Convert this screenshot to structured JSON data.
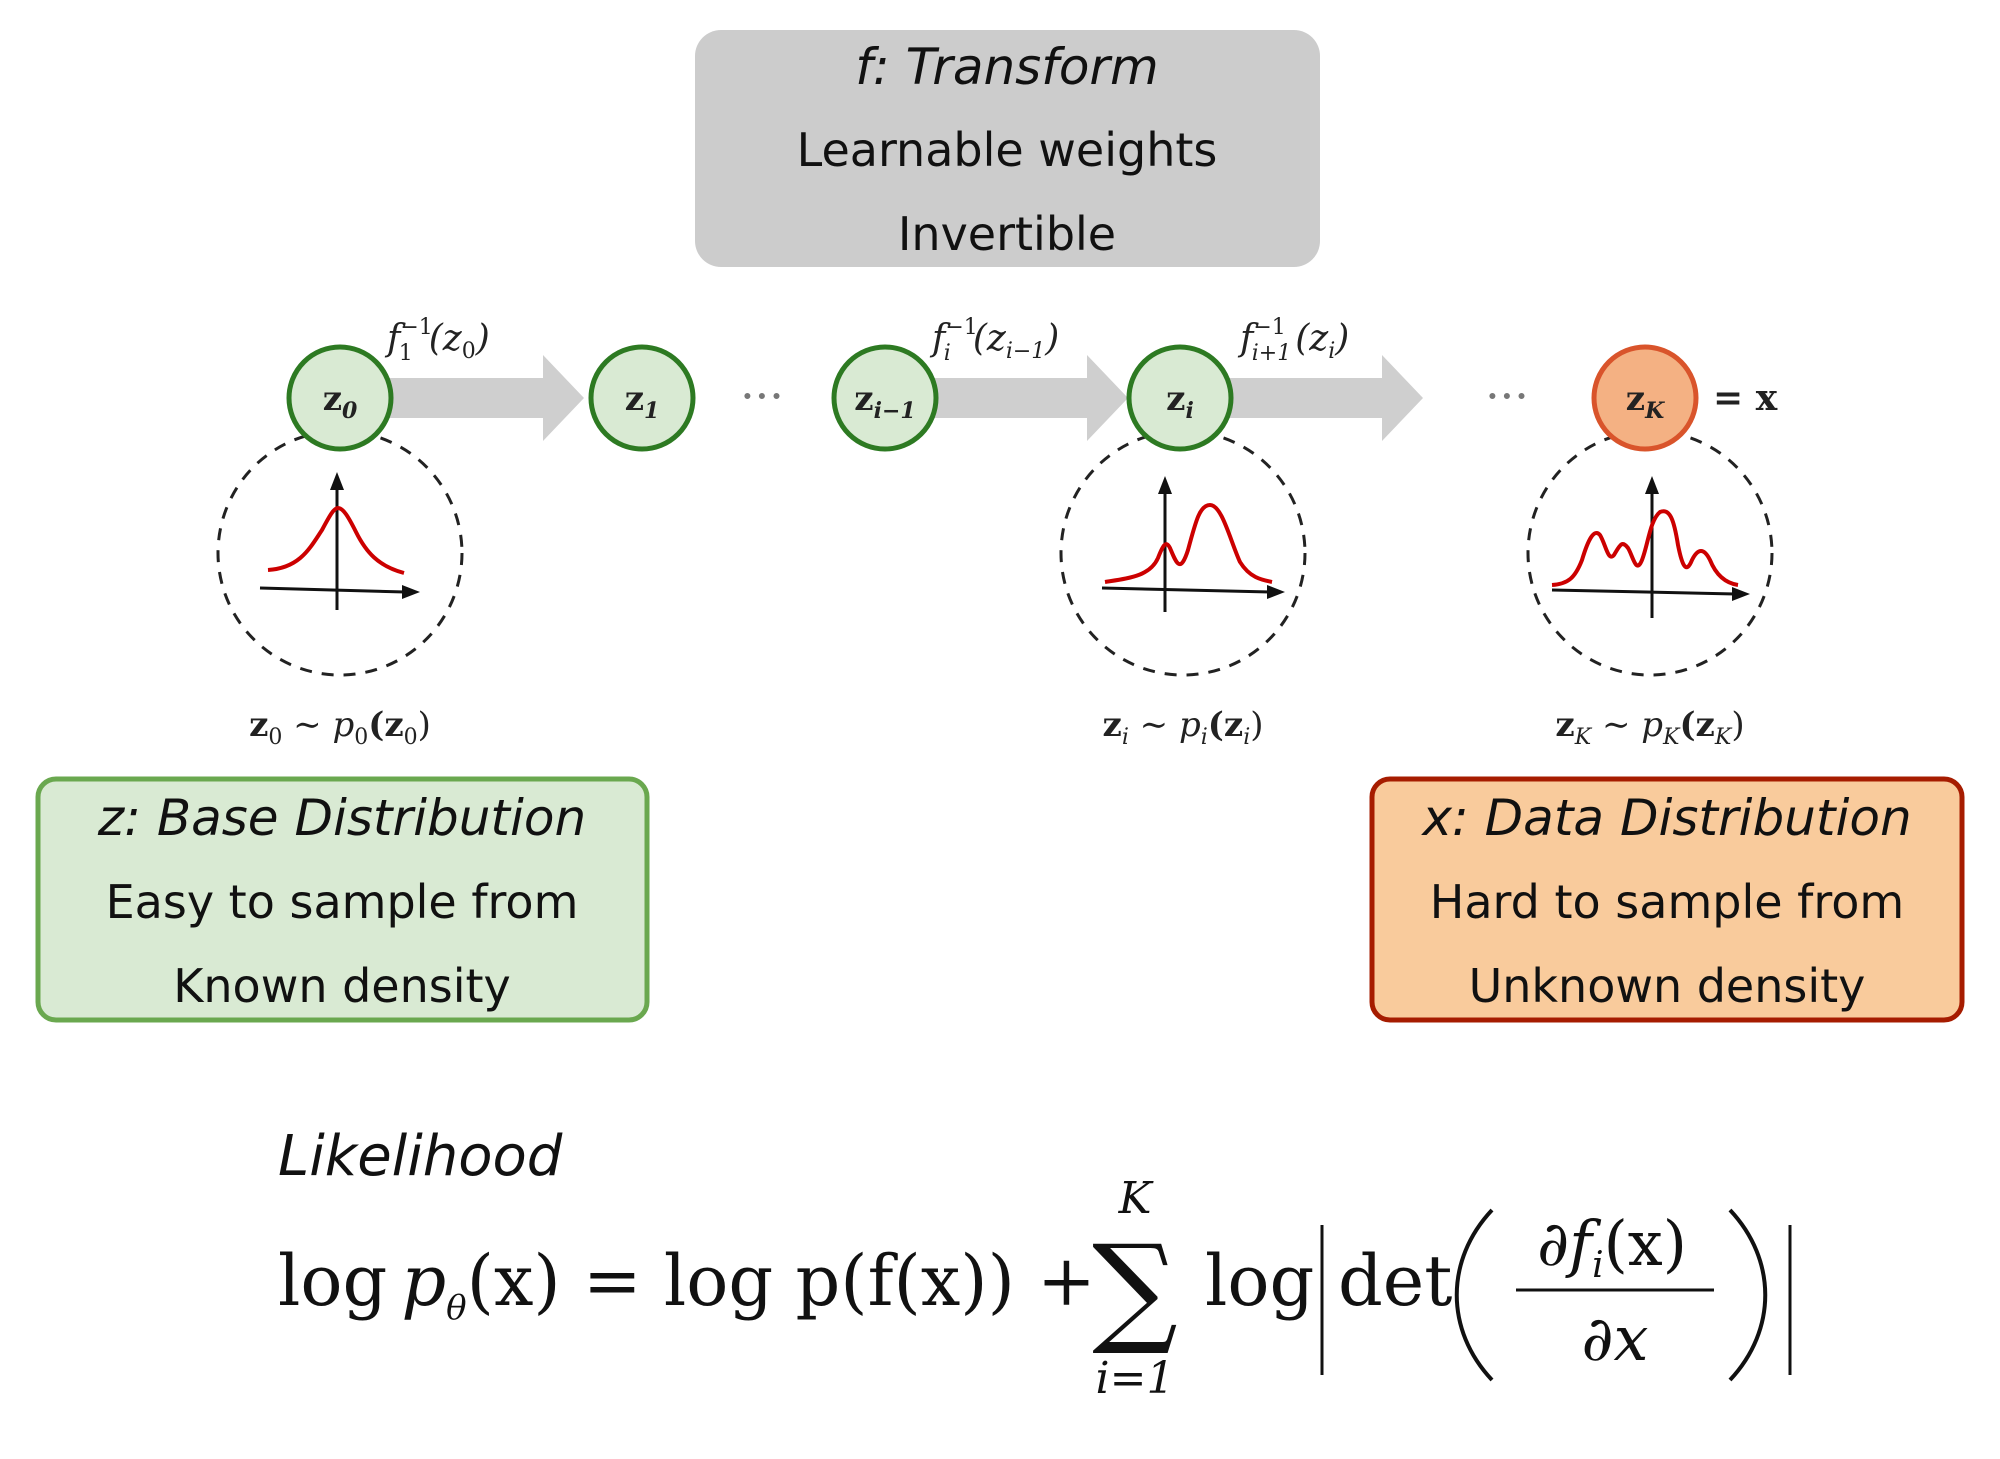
{
  "transform_box": {
    "title": "f: Transform",
    "line1": "Learnable weights",
    "line2": "Invertible"
  },
  "nodes": [
    {
      "base": "z",
      "sub": "0"
    },
    {
      "base": "z",
      "sub": "1"
    },
    {
      "base": "z",
      "sub": "i−1"
    },
    {
      "base": "z",
      "sub": "i"
    },
    {
      "base": "z",
      "sub": "K"
    }
  ],
  "equals_x": "= x",
  "ellipsis": "···",
  "edges": [
    {
      "f": "f",
      "sup": "−1",
      "sub": "1",
      "arg": "(z",
      "argsub": "0",
      "close": ")"
    },
    {
      "f": "f",
      "sup": "−1",
      "sub": "i",
      "arg": "(z",
      "argsub": "i−1",
      "close": ")"
    },
    {
      "f": "f",
      "sup": "−1",
      "sub": "i+1",
      "arg": "(z",
      "argsub": "i",
      "close": ")"
    }
  ],
  "distributions": [
    {
      "z": "z",
      "zsub": "0",
      "sim": " ∼ p",
      "psub": "0",
      "open": "(z",
      "argsub": "0",
      "close": ")"
    },
    {
      "z": "z",
      "zsub": "i",
      "sim": " ∼ p",
      "psub": "i",
      "open": "(z",
      "argsub": "i",
      "close": ")"
    },
    {
      "z": "z",
      "zsub": "K",
      "sim": " ∼ p",
      "psub": "K",
      "open": "(z",
      "argsub": "K",
      "close": ")"
    }
  ],
  "base_box": {
    "title": "z: Base Distribution",
    "line1": "Easy to sample from",
    "line2": "Known density"
  },
  "data_box": {
    "title": "x: Data Distribution",
    "line1": "Hard to sample from",
    "line2": "Unknown density"
  },
  "likelihood": {
    "title": "Likelihood",
    "lhs_log": "log",
    "lhs_p": "p",
    "lhs_theta": "θ",
    "lhs_arg": "(x) = log p(f(x)) +",
    "sum_top": "K",
    "sum_bottom": "i=1",
    "sum_symbol": "∑",
    "log_det": "log",
    "det": "det",
    "numerator": "∂f",
    "numerator_sub": "i",
    "numerator_arg": "(x)",
    "denominator": "∂x"
  },
  "colors": {
    "green_fill": "#d9ead3",
    "green_stroke": "#6aa84f",
    "node_green_stroke": "#2d7a22",
    "orange_fill": "#f9cb9c",
    "orange_stroke": "#a61c00",
    "node_orange_fill": "#f4b183",
    "node_orange_stroke": "#d9542b",
    "gray_fill": "#cccccc",
    "arrow_fill": "#cfcfcf",
    "curve": "#cc0000"
  }
}
